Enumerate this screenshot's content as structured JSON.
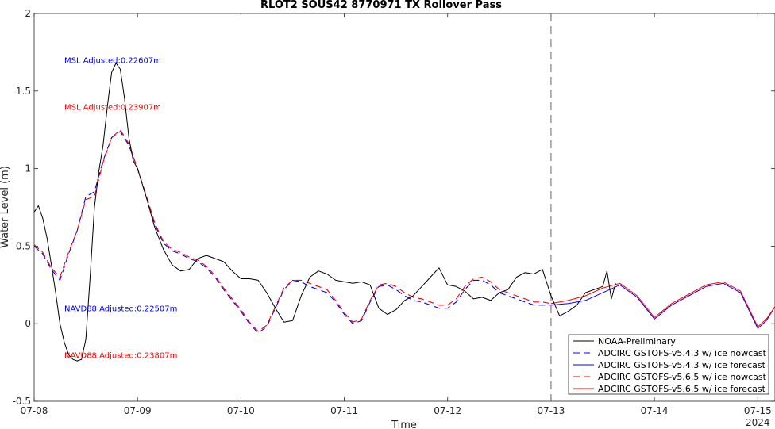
{
  "chart_data": {
    "type": "line",
    "title": "RLOT2 SOUS42 8770971 TX Rollover Pass",
    "xlabel": "Time",
    "ylabel": "Water Level (m)",
    "xlim": [
      "2024-07-08 00:00",
      "2024-07-15 04:00"
    ],
    "ylim": [
      -0.5,
      2
    ],
    "x_ticks": [
      "07-08",
      "07-09",
      "07-10",
      "07-11",
      "07-12",
      "07-13",
      "07-14",
      "07-15"
    ],
    "x_year_label": "2024",
    "y_ticks": [
      -0.5,
      0,
      0.5,
      1,
      1.5,
      2
    ],
    "grid": false,
    "legend_position": "bottom-right",
    "forecast_start": "2024-07-13 00:00",
    "annotations": [
      {
        "text": "MSL Adjusted:0.22607m",
        "color": "#0000ff",
        "x": "2024-07-08 07:00",
        "y": 1.7
      },
      {
        "text": "MSL Adjusted:0.23907m",
        "color": "#ff0000",
        "x": "2024-07-08 07:00",
        "y": 1.4
      },
      {
        "text": "NAVD88 Adjusted:0.22507m",
        "color": "#0000ff",
        "x": "2024-07-08 07:00",
        "y": 0.1
      },
      {
        "text": "NAVD88 Adjusted:0.23807m",
        "color": "#ff0000",
        "x": "2024-07-08 07:00",
        "y": -0.2
      }
    ],
    "series": [
      {
        "name": "NOAA-Preliminary",
        "color": "#000000",
        "style": "solid",
        "x": [
          "2024-07-08 00:00",
          "2024-07-08 01:00",
          "2024-07-08 02:00",
          "2024-07-08 03:00",
          "2024-07-08 04:00",
          "2024-07-08 05:00",
          "2024-07-08 06:00",
          "2024-07-08 07:00",
          "2024-07-08 08:00",
          "2024-07-08 09:00",
          "2024-07-08 10:00",
          "2024-07-08 11:00",
          "2024-07-08 12:00",
          "2024-07-08 13:00",
          "2024-07-08 14:00",
          "2024-07-08 15:00",
          "2024-07-08 16:00",
          "2024-07-08 17:00",
          "2024-07-08 18:00",
          "2024-07-08 19:00",
          "2024-07-08 20:00",
          "2024-07-08 21:00",
          "2024-07-08 22:00",
          "2024-07-08 23:00",
          "2024-07-09 00:00",
          "2024-07-09 02:00",
          "2024-07-09 04:00",
          "2024-07-09 06:00",
          "2024-07-09 08:00",
          "2024-07-09 10:00",
          "2024-07-09 12:00",
          "2024-07-09 14:00",
          "2024-07-09 16:00",
          "2024-07-09 18:00",
          "2024-07-09 20:00",
          "2024-07-09 22:00",
          "2024-07-10 00:00",
          "2024-07-10 02:00",
          "2024-07-10 04:00",
          "2024-07-10 06:00",
          "2024-07-10 08:00",
          "2024-07-10 10:00",
          "2024-07-10 12:00",
          "2024-07-10 14:00",
          "2024-07-10 16:00",
          "2024-07-10 18:00",
          "2024-07-10 20:00",
          "2024-07-10 22:00",
          "2024-07-11 00:00",
          "2024-07-11 02:00",
          "2024-07-11 04:00",
          "2024-07-11 06:00",
          "2024-07-11 08:00",
          "2024-07-11 10:00",
          "2024-07-11 12:00",
          "2024-07-11 14:00",
          "2024-07-11 16:00",
          "2024-07-11 18:00",
          "2024-07-11 20:00",
          "2024-07-11 22:00",
          "2024-07-12 00:00",
          "2024-07-12 02:00",
          "2024-07-12 04:00",
          "2024-07-12 06:00",
          "2024-07-12 08:00",
          "2024-07-12 10:00",
          "2024-07-12 12:00",
          "2024-07-12 14:00",
          "2024-07-12 16:00",
          "2024-07-12 18:00",
          "2024-07-12 20:00",
          "2024-07-12 22:00",
          "2024-07-13 00:00",
          "2024-07-13 02:00",
          "2024-07-13 04:00",
          "2024-07-13 06:00",
          "2024-07-13 08:00",
          "2024-07-13 10:00",
          "2024-07-13 12:00",
          "2024-07-13 13:00",
          "2024-07-13 14:00",
          "2024-07-13 15:00"
        ],
        "y": [
          0.72,
          0.76,
          0.68,
          0.55,
          0.38,
          0.2,
          0.0,
          -0.12,
          -0.2,
          -0.23,
          -0.24,
          -0.23,
          -0.1,
          0.3,
          0.75,
          0.98,
          1.15,
          1.4,
          1.62,
          1.68,
          1.64,
          1.45,
          1.2,
          1.05,
          1.0,
          0.82,
          0.62,
          0.48,
          0.38,
          0.34,
          0.35,
          0.42,
          0.44,
          0.42,
          0.4,
          0.34,
          0.29,
          0.29,
          0.28,
          0.2,
          0.1,
          0.01,
          0.02,
          0.18,
          0.3,
          0.34,
          0.32,
          0.28,
          0.27,
          0.26,
          0.27,
          0.25,
          0.1,
          0.06,
          0.09,
          0.15,
          0.18,
          0.24,
          0.3,
          0.36,
          0.25,
          0.24,
          0.21,
          0.16,
          0.17,
          0.15,
          0.2,
          0.22,
          0.3,
          0.33,
          0.32,
          0.35,
          0.18,
          0.05,
          0.08,
          0.12,
          0.2,
          0.22,
          0.24,
          0.34,
          0.16,
          0.26
        ]
      },
      {
        "name": "ADCIRC GSTOFS-v5.4.3 w/ ice nowcast",
        "color": "#0000ff",
        "style": "dashed",
        "x": [
          "2024-07-08 00:00",
          "2024-07-08 02:00",
          "2024-07-08 04:00",
          "2024-07-08 06:00",
          "2024-07-08 08:00",
          "2024-07-08 10:00",
          "2024-07-08 12:00",
          "2024-07-08 14:00",
          "2024-07-08 16:00",
          "2024-07-08 18:00",
          "2024-07-08 20:00",
          "2024-07-08 22:00",
          "2024-07-09 00:00",
          "2024-07-09 02:00",
          "2024-07-09 04:00",
          "2024-07-09 06:00",
          "2024-07-09 08:00",
          "2024-07-09 10:00",
          "2024-07-09 12:00",
          "2024-07-09 14:00",
          "2024-07-09 16:00",
          "2024-07-09 18:00",
          "2024-07-09 20:00",
          "2024-07-09 22:00",
          "2024-07-10 00:00",
          "2024-07-10 02:00",
          "2024-07-10 04:00",
          "2024-07-10 06:00",
          "2024-07-10 08:00",
          "2024-07-10 10:00",
          "2024-07-10 12:00",
          "2024-07-10 14:00",
          "2024-07-10 16:00",
          "2024-07-10 18:00",
          "2024-07-10 20:00",
          "2024-07-10 22:00",
          "2024-07-11 00:00",
          "2024-07-11 02:00",
          "2024-07-11 04:00",
          "2024-07-11 06:00",
          "2024-07-11 08:00",
          "2024-07-11 10:00",
          "2024-07-11 12:00",
          "2024-07-11 14:00",
          "2024-07-11 16:00",
          "2024-07-11 18:00",
          "2024-07-11 20:00",
          "2024-07-11 22:00",
          "2024-07-12 00:00",
          "2024-07-12 02:00",
          "2024-07-12 04:00",
          "2024-07-12 06:00",
          "2024-07-12 08:00",
          "2024-07-12 10:00",
          "2024-07-12 12:00",
          "2024-07-12 14:00",
          "2024-07-12 16:00",
          "2024-07-12 18:00",
          "2024-07-12 20:00",
          "2024-07-12 22:00",
          "2024-07-13 00:00"
        ],
        "y": [
          0.5,
          0.45,
          0.35,
          0.28,
          0.45,
          0.6,
          0.82,
          0.85,
          1.05,
          1.2,
          1.24,
          1.15,
          1.0,
          0.82,
          0.64,
          0.52,
          0.47,
          0.45,
          0.42,
          0.4,
          0.36,
          0.3,
          0.22,
          0.15,
          0.08,
          0.0,
          -0.06,
          -0.02,
          0.1,
          0.22,
          0.28,
          0.27,
          0.24,
          0.22,
          0.2,
          0.14,
          0.06,
          0.0,
          0.02,
          0.14,
          0.24,
          0.25,
          0.22,
          0.18,
          0.15,
          0.14,
          0.12,
          0.1,
          0.1,
          0.14,
          0.22,
          0.28,
          0.28,
          0.25,
          0.2,
          0.18,
          0.16,
          0.14,
          0.12,
          0.12,
          0.12
        ]
      },
      {
        "name": "ADCIRC GSTOFS-v5.4.3 w/ ice forecast",
        "color": "#0000ff",
        "style": "solid",
        "x": [
          "2024-07-13 00:00",
          "2024-07-13 04:00",
          "2024-07-13 08:00",
          "2024-07-13 12:00",
          "2024-07-13 16:00",
          "2024-07-13 20:00",
          "2024-07-14 00:00",
          "2024-07-14 04:00",
          "2024-07-14 08:00",
          "2024-07-14 12:00",
          "2024-07-14 16:00",
          "2024-07-14 20:00",
          "2024-07-15 00:00",
          "2024-07-15 02:00",
          "2024-07-15 04:00"
        ],
        "y": [
          0.12,
          0.13,
          0.15,
          0.2,
          0.25,
          0.17,
          0.03,
          0.12,
          0.18,
          0.24,
          0.26,
          0.2,
          -0.03,
          0.02,
          0.11
        ]
      },
      {
        "name": "ADCIRC GSTOFS-v5.6.5 w/ ice nowcast",
        "color": "#ff0000",
        "style": "dashed",
        "x": [
          "2024-07-08 00:00",
          "2024-07-08 02:00",
          "2024-07-08 04:00",
          "2024-07-08 06:00",
          "2024-07-08 08:00",
          "2024-07-08 10:00",
          "2024-07-08 12:00",
          "2024-07-08 14:00",
          "2024-07-08 16:00",
          "2024-07-08 18:00",
          "2024-07-08 20:00",
          "2024-07-08 22:00",
          "2024-07-09 00:00",
          "2024-07-09 02:00",
          "2024-07-09 04:00",
          "2024-07-09 06:00",
          "2024-07-09 08:00",
          "2024-07-09 10:00",
          "2024-07-09 12:00",
          "2024-07-09 14:00",
          "2024-07-09 16:00",
          "2024-07-09 18:00",
          "2024-07-09 20:00",
          "2024-07-09 22:00",
          "2024-07-10 00:00",
          "2024-07-10 02:00",
          "2024-07-10 04:00",
          "2024-07-10 06:00",
          "2024-07-10 08:00",
          "2024-07-10 10:00",
          "2024-07-10 12:00",
          "2024-07-10 14:00",
          "2024-07-10 16:00",
          "2024-07-10 18:00",
          "2024-07-10 20:00",
          "2024-07-10 22:00",
          "2024-07-11 00:00",
          "2024-07-11 02:00",
          "2024-07-11 04:00",
          "2024-07-11 06:00",
          "2024-07-11 08:00",
          "2024-07-11 10:00",
          "2024-07-11 12:00",
          "2024-07-11 14:00",
          "2024-07-11 16:00",
          "2024-07-11 18:00",
          "2024-07-11 20:00",
          "2024-07-11 22:00",
          "2024-07-12 00:00",
          "2024-07-12 02:00",
          "2024-07-12 04:00",
          "2024-07-12 06:00",
          "2024-07-12 08:00",
          "2024-07-12 10:00",
          "2024-07-12 12:00",
          "2024-07-12 14:00",
          "2024-07-12 16:00",
          "2024-07-12 18:00",
          "2024-07-12 20:00",
          "2024-07-12 22:00",
          "2024-07-13 00:00"
        ],
        "y": [
          0.51,
          0.46,
          0.36,
          0.3,
          0.46,
          0.6,
          0.8,
          0.82,
          1.04,
          1.2,
          1.25,
          1.16,
          1.0,
          0.83,
          0.65,
          0.53,
          0.48,
          0.46,
          0.43,
          0.41,
          0.37,
          0.31,
          0.23,
          0.16,
          0.09,
          0.01,
          -0.05,
          -0.01,
          0.11,
          0.23,
          0.28,
          0.28,
          0.26,
          0.24,
          0.22,
          0.15,
          0.07,
          0.01,
          0.03,
          0.15,
          0.25,
          0.26,
          0.24,
          0.2,
          0.17,
          0.16,
          0.14,
          0.12,
          0.12,
          0.16,
          0.24,
          0.29,
          0.3,
          0.27,
          0.22,
          0.2,
          0.18,
          0.16,
          0.14,
          0.14,
          0.13
        ]
      },
      {
        "name": "ADCIRC GSTOFS-v5.6.5 w/ ice forecast",
        "color": "#ff0000",
        "style": "solid",
        "x": [
          "2024-07-13 00:00",
          "2024-07-13 04:00",
          "2024-07-13 08:00",
          "2024-07-13 12:00",
          "2024-07-13 16:00",
          "2024-07-13 20:00",
          "2024-07-14 00:00",
          "2024-07-14 04:00",
          "2024-07-14 08:00",
          "2024-07-14 12:00",
          "2024-07-14 16:00",
          "2024-07-14 20:00",
          "2024-07-15 00:00",
          "2024-07-15 02:00",
          "2024-07-15 04:00"
        ],
        "y": [
          0.13,
          0.15,
          0.18,
          0.23,
          0.26,
          0.18,
          0.04,
          0.13,
          0.19,
          0.25,
          0.27,
          0.21,
          -0.02,
          0.03,
          0.11
        ]
      }
    ]
  }
}
